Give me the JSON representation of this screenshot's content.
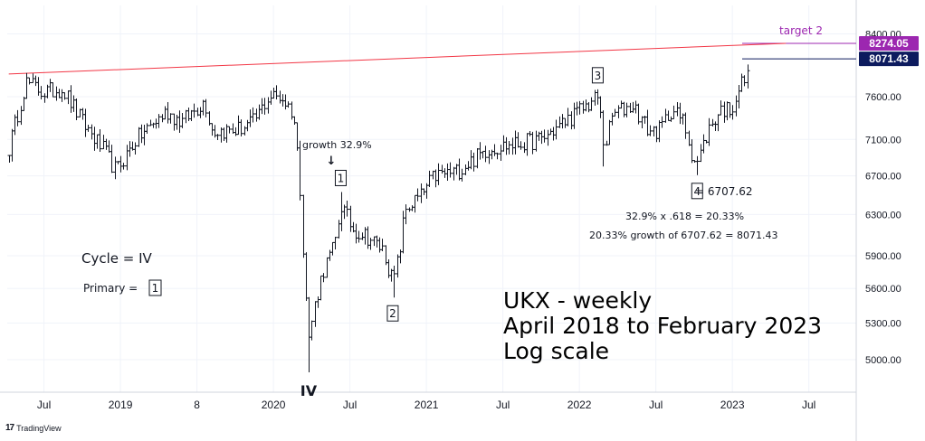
{
  "chart_data": {
    "type": "ohlc-bar",
    "scale": "log",
    "title_lines": [
      "UKX - weekly",
      "April 2018 to February 2023",
      "Log scale"
    ],
    "y_ticks": [
      5000,
      5300,
      5600,
      5900,
      6300,
      6700,
      7100,
      7600,
      8400
    ],
    "y_tick_labels": [
      "5000.00",
      "5300.00",
      "5600.00",
      "5900.00",
      "6300.00",
      "6700.00",
      "7100.00",
      "7600.00",
      "8400.00"
    ],
    "x_tick_labels": [
      {
        "t": 2018.5,
        "label": "Jul"
      },
      {
        "t": 2019.0,
        "label": "2019"
      },
      {
        "t": 2019.5,
        "label": "8"
      },
      {
        "t": 2020.0,
        "label": "2020"
      },
      {
        "t": 2020.5,
        "label": "Jul"
      },
      {
        "t": 2021.0,
        "label": "2021"
      },
      {
        "t": 2021.5,
        "label": "Jul"
      },
      {
        "t": 2022.0,
        "label": "2022"
      },
      {
        "t": 2022.5,
        "label": "Jul"
      },
      {
        "t": 2023.0,
        "label": "2023"
      },
      {
        "t": 2023.5,
        "label": "Jul"
      }
    ],
    "price_levels": [
      {
        "value": 8274.05,
        "label": "8274.05",
        "color": "#9c27b0",
        "name": "target 2"
      },
      {
        "value": 8071.43,
        "label": "8071.43",
        "color": "#0d1b5e",
        "name": ""
      }
    ],
    "trendline": {
      "color": "#f23645",
      "points": [
        {
          "t": 2018.27,
          "v": 7880
        },
        {
          "t": 2023.35,
          "v": 8274.05
        }
      ]
    },
    "anchors": [
      {
        "t": 2018.27,
        "v": 7000
      },
      {
        "t": 2018.38,
        "v": 7780
      },
      {
        "t": 2018.5,
        "v": 7650
      },
      {
        "t": 2018.62,
        "v": 7700
      },
      {
        "t": 2018.75,
        "v": 7300
      },
      {
        "t": 2018.9,
        "v": 6950
      },
      {
        "t": 2018.97,
        "v": 6750
      },
      {
        "t": 2019.1,
        "v": 7100
      },
      {
        "t": 2019.3,
        "v": 7420
      },
      {
        "t": 2019.4,
        "v": 7300
      },
      {
        "t": 2019.55,
        "v": 7550
      },
      {
        "t": 2019.6,
        "v": 7200
      },
      {
        "t": 2019.75,
        "v": 7200
      },
      {
        "t": 2019.87,
        "v": 7300
      },
      {
        "t": 2019.97,
        "v": 7600
      },
      {
        "t": 2020.05,
        "v": 7600
      },
      {
        "t": 2020.13,
        "v": 7400
      },
      {
        "t": 2020.17,
        "v": 6700
      },
      {
        "t": 2020.2,
        "v": 5800
      },
      {
        "t": 2020.23,
        "v": 5150
      },
      {
        "t": 2020.26,
        "v": 5400
      },
      {
        "t": 2020.32,
        "v": 5750
      },
      {
        "t": 2020.4,
        "v": 6000
      },
      {
        "t": 2020.44,
        "v": 6400
      },
      {
        "t": 2020.52,
        "v": 6150
      },
      {
        "t": 2020.6,
        "v": 6100
      },
      {
        "t": 2020.72,
        "v": 5950
      },
      {
        "t": 2020.78,
        "v": 5650
      },
      {
        "t": 2020.82,
        "v": 5900
      },
      {
        "t": 2020.86,
        "v": 6350
      },
      {
        "t": 2020.97,
        "v": 6500
      },
      {
        "t": 2021.05,
        "v": 6700
      },
      {
        "t": 2021.2,
        "v": 6750
      },
      {
        "t": 2021.4,
        "v": 7000
      },
      {
        "t": 2021.6,
        "v": 7050
      },
      {
        "t": 2021.75,
        "v": 7100
      },
      {
        "t": 2021.9,
        "v": 7300
      },
      {
        "t": 2022.05,
        "v": 7500
      },
      {
        "t": 2022.12,
        "v": 7600
      },
      {
        "t": 2022.16,
        "v": 7000
      },
      {
        "t": 2022.22,
        "v": 7400
      },
      {
        "t": 2022.35,
        "v": 7500
      },
      {
        "t": 2022.45,
        "v": 7200
      },
      {
        "t": 2022.52,
        "v": 7200
      },
      {
        "t": 2022.6,
        "v": 7450
      },
      {
        "t": 2022.68,
        "v": 7300
      },
      {
        "t": 2022.74,
        "v": 6900
      },
      {
        "t": 2022.77,
        "v": 6850
      },
      {
        "t": 2022.84,
        "v": 7200
      },
      {
        "t": 2022.92,
        "v": 7450
      },
      {
        "t": 2022.99,
        "v": 7450
      },
      {
        "t": 2023.05,
        "v": 7750
      },
      {
        "t": 2023.1,
        "v": 7850
      }
    ],
    "spikes": [
      {
        "t": 2020.23,
        "low": 4900
      },
      {
        "t": 2020.44,
        "high": 6530
      },
      {
        "t": 2020.78,
        "low": 5520
      },
      {
        "t": 2022.12,
        "high": 7690
      },
      {
        "t": 2022.16,
        "low": 6800
      },
      {
        "t": 2022.77,
        "low": 6707.62
      },
      {
        "t": 2023.1,
        "high": 8000
      }
    ],
    "wave_labels": [
      {
        "id": "IV",
        "t": 2020.23,
        "v": 4900,
        "boxed": false,
        "pos": "below"
      },
      {
        "id": "1",
        "t": 2020.44,
        "v": 6530,
        "boxed": true,
        "pos": "above"
      },
      {
        "id": "2",
        "t": 2020.78,
        "v": 5520,
        "boxed": true,
        "pos": "below"
      },
      {
        "id": "3",
        "t": 2022.12,
        "v": 7690,
        "boxed": true,
        "pos": "above"
      },
      {
        "id": "4",
        "t": 2022.77,
        "v": 6707.62,
        "boxed": true,
        "pos": "below"
      }
    ],
    "annotations": {
      "growth": "growth 32.9%",
      "arrow": "↓",
      "wave4_value": "= 6707.62",
      "calc1": "32.9% x .618 = 20.33%",
      "calc2": "20.33% growth of 6707.62 = 8071.43",
      "cycle": "Cycle = IV",
      "primary": "Primary =",
      "primary_box": "1",
      "target2": "target 2"
    }
  },
  "branding": {
    "logo_mark": "17",
    "logo_text": "TradingView"
  }
}
